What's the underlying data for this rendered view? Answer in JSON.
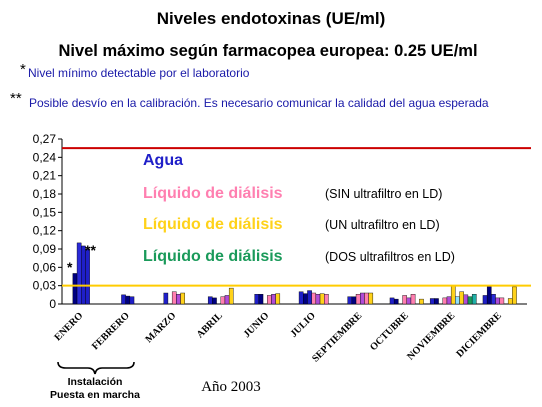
{
  "page": {
    "title": "Niveles endotoxinas (UE/ml)",
    "subtitle": "Nivel máximo según farmacopea europea: 0.25 UE/ml",
    "note1": {
      "marker": "*",
      "text": "Nivel mínimo detectable por el laboratorio"
    },
    "note2": {
      "marker": "**",
      "text": "Posible desvío en la calibración. Es necesario comunicar la calidad del agua esperada"
    },
    "legend": {
      "agua": {
        "label": "Agua",
        "suffix": "",
        "color": "#1f1fc8"
      },
      "sin": {
        "label": "Líquido de diálisis",
        "suffix": "(SIN ultrafiltro en LD)",
        "color": "#ff7fb0"
      },
      "un": {
        "label": "Líquido de diálisis",
        "suffix": "(UN ultrafiltro en LD)",
        "color": "#ffd21a"
      },
      "dos": {
        "label": "Líquido de diálisis",
        "suffix": "(DOS ultrafiltros en LD)",
        "color": "#1a9a5a"
      }
    },
    "point_annotations": {
      "single": "*",
      "double": "**"
    },
    "bracket_label_1": "Instalación",
    "bracket_label_2": "Puesta en marcha",
    "xlabel": "Año 2003",
    "colors": {
      "max_line": "#cc0000",
      "min_line": "#ffcc00",
      "agua_dark": "#000080",
      "agua_mid": "#2a2ad8",
      "purple": "#b04cd8",
      "teal": "#20b0a8",
      "cyan": "#8fe0ff",
      "title": "#000000",
      "note_text": "#1a1aa8"
    }
  },
  "chart_data": {
    "type": "bar",
    "title": "Niveles endotoxinas (UE/ml)",
    "xlabel": "Año 2003",
    "ylabel": "",
    "ylim": [
      0,
      0.27
    ],
    "yticks": [
      "0",
      "0,03",
      "0,06",
      "0,09",
      "0,12",
      "0,15",
      "0,18",
      "0,21",
      "0,24",
      "0,27"
    ],
    "reference_lines": [
      {
        "name": "Nivel máximo farmacopea europea",
        "value": 0.255,
        "color": "#cc0000"
      },
      {
        "name": "Nivel mínimo detectable",
        "value": 0.03,
        "color": "#ffcc00"
      }
    ],
    "categories": [
      "ENERO",
      "FEBRERO",
      "MARZO",
      "ABRIL",
      "JUNIO",
      "JULIO",
      "SEPTIEMBRE",
      "OCTUBRE",
      "NOVIEMBRE",
      "DICIEMBRE"
    ],
    "bars": [
      [
        {
          "v": 0.05,
          "c": "#000080"
        },
        {
          "v": 0.1,
          "c": "#2a2ad8"
        },
        {
          "v": 0.095,
          "c": "#1f1fc8"
        },
        {
          "v": 0.09,
          "c": "#1f1fc8"
        }
      ],
      [
        {
          "v": 0.015,
          "c": "#1f1fc8"
        },
        {
          "v": 0.013,
          "c": "#000080"
        },
        {
          "v": 0.012,
          "c": "#1f1fc8"
        }
      ],
      [
        {
          "v": 0.018,
          "c": "#1f1fc8"
        },
        {
          "v": 0,
          "c": "#ffffff"
        },
        {
          "v": 0.02,
          "c": "#ff7fb0"
        },
        {
          "v": 0.016,
          "c": "#b04cd8"
        },
        {
          "v": 0.018,
          "c": "#ffd21a"
        }
      ],
      [
        {
          "v": 0.012,
          "c": "#1f1fc8"
        },
        {
          "v": 0.01,
          "c": "#000080"
        },
        {
          "v": 0,
          "c": "#ffffff"
        },
        {
          "v": 0.012,
          "c": "#ff7fb0"
        },
        {
          "v": 0.014,
          "c": "#b04cd8"
        },
        {
          "v": 0.026,
          "c": "#ffd21a"
        }
      ],
      [
        {
          "v": 0.016,
          "c": "#1f1fc8"
        },
        {
          "v": 0.016,
          "c": "#000080"
        },
        {
          "v": 0,
          "c": "#ffffff"
        },
        {
          "v": 0.014,
          "c": "#ff7fb0"
        },
        {
          "v": 0.016,
          "c": "#b04cd8"
        },
        {
          "v": 0.017,
          "c": "#ffd21a"
        }
      ],
      [
        {
          "v": 0.02,
          "c": "#1f1fc8"
        },
        {
          "v": 0.017,
          "c": "#000080"
        },
        {
          "v": 0.022,
          "c": "#1f1fc8"
        },
        {
          "v": 0.018,
          "c": "#ff7fb0"
        },
        {
          "v": 0.016,
          "c": "#b04cd8"
        },
        {
          "v": 0.017,
          "c": "#ffd21a"
        },
        {
          "v": 0.016,
          "c": "#ff7fb0"
        }
      ],
      [
        {
          "v": 0.012,
          "c": "#1f1fc8"
        },
        {
          "v": 0.012,
          "c": "#000080"
        },
        {
          "v": 0.016,
          "c": "#ff7fb0"
        },
        {
          "v": 0.018,
          "c": "#b04cd8"
        },
        {
          "v": 0.018,
          "c": "#ff7fb0"
        },
        {
          "v": 0.018,
          "c": "#ffd21a"
        }
      ],
      [
        {
          "v": 0.01,
          "c": "#1f1fc8"
        },
        {
          "v": 0.008,
          "c": "#000080"
        },
        {
          "v": 0,
          "c": "#ffffff"
        },
        {
          "v": 0.014,
          "c": "#ff7fb0"
        },
        {
          "v": 0.01,
          "c": "#b04cd8"
        },
        {
          "v": 0.016,
          "c": "#ff7fb0"
        },
        {
          "v": 0,
          "c": "#ffffff"
        },
        {
          "v": 0.008,
          "c": "#ffd21a"
        }
      ],
      [
        {
          "v": 0.009,
          "c": "#1f1fc8"
        },
        {
          "v": 0.009,
          "c": "#000080"
        },
        {
          "v": 0,
          "c": "#ffffff"
        },
        {
          "v": 0.01,
          "c": "#ff7fb0"
        },
        {
          "v": 0.012,
          "c": "#b04cd8"
        },
        {
          "v": 0.03,
          "c": "#ffd21a"
        },
        {
          "v": 0.012,
          "c": "#8fe0ff"
        },
        {
          "v": 0.02,
          "c": "#ffd21a"
        },
        {
          "v": 0.015,
          "c": "#b04cd8"
        },
        {
          "v": 0.012,
          "c": "#1a9a5a"
        },
        {
          "v": 0.016,
          "c": "#20b0a8"
        }
      ],
      [
        {
          "v": 0.014,
          "c": "#1f1fc8"
        },
        {
          "v": 0.03,
          "c": "#000080"
        },
        {
          "v": 0.016,
          "c": "#2a2ad8"
        },
        {
          "v": 0.01,
          "c": "#b04cd8"
        },
        {
          "v": 0.01,
          "c": "#ff7fb0"
        },
        {
          "v": 0,
          "c": "#ffffff"
        },
        {
          "v": 0.009,
          "c": "#ffd21a"
        },
        {
          "v": 0.028,
          "c": "#ffd21a"
        }
      ]
    ],
    "grid": false,
    "legend_position": "inside-top-left"
  }
}
